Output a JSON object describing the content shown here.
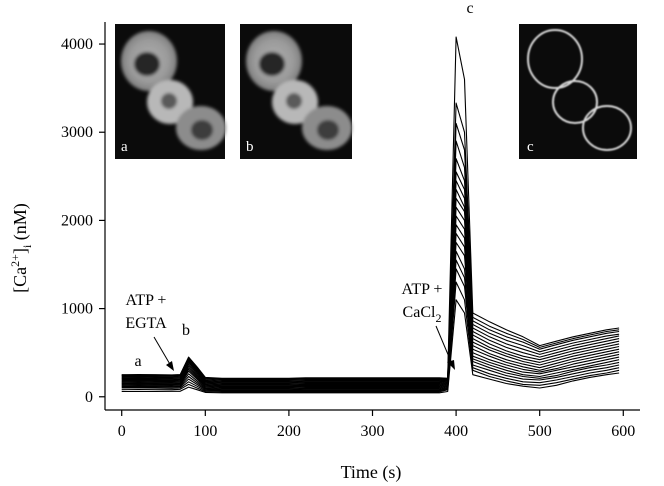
{
  "chart_data": {
    "type": "line",
    "title": "",
    "xlabel": "Time (s)",
    "ylabel": {
      "base": "[Ca",
      "sup": "2+",
      "close": "]",
      "sub": "i",
      "unit": " (nM)"
    },
    "xlim": [
      -20,
      620
    ],
    "ylim": [
      -150,
      4250
    ],
    "xticks": [
      "0",
      "100",
      "200",
      "300",
      "400",
      "500",
      "600"
    ],
    "yticks": [
      "0",
      "1000",
      "2000",
      "3000",
      "4000"
    ],
    "x": [
      0,
      20,
      40,
      60,
      70,
      80,
      90,
      100,
      120,
      140,
      160,
      180,
      200,
      220,
      240,
      260,
      280,
      300,
      320,
      340,
      360,
      380,
      390,
      400,
      410,
      420,
      440,
      460,
      480,
      500,
      520,
      540,
      560,
      580,
      595
    ],
    "series": [
      {
        "values": [
          60,
          60,
          60,
          62,
          62,
          110,
          80,
          50,
          45,
          45,
          45,
          45,
          45,
          45,
          45,
          45,
          45,
          45,
          45,
          45,
          45,
          45,
          60,
          1100,
          950,
          250,
          200,
          150,
          120,
          100,
          130,
          180,
          220,
          250,
          270
        ]
      },
      {
        "values": [
          80,
          82,
          80,
          80,
          85,
          140,
          100,
          60,
          55,
          55,
          55,
          55,
          55,
          55,
          55,
          55,
          55,
          55,
          55,
          55,
          55,
          55,
          80,
          1300,
          1100,
          300,
          230,
          180,
          140,
          130,
          160,
          200,
          240,
          270,
          300
        ]
      },
      {
        "values": [
          100,
          100,
          98,
          96,
          100,
          170,
          120,
          70,
          65,
          65,
          65,
          65,
          65,
          65,
          65,
          65,
          65,
          65,
          65,
          65,
          65,
          65,
          90,
          1450,
          1250,
          330,
          260,
          210,
          170,
          160,
          190,
          230,
          270,
          300,
          330
        ]
      },
      {
        "values": [
          110,
          112,
          110,
          108,
          112,
          200,
          140,
          80,
          72,
          72,
          72,
          72,
          72,
          75,
          75,
          75,
          75,
          75,
          75,
          75,
          75,
          75,
          100,
          1550,
          1350,
          360,
          300,
          240,
          200,
          190,
          220,
          260,
          300,
          330,
          360
        ]
      },
      {
        "values": [
          120,
          122,
          120,
          118,
          122,
          230,
          160,
          90,
          80,
          80,
          80,
          80,
          80,
          85,
          85,
          85,
          85,
          85,
          85,
          85,
          85,
          85,
          110,
          1650,
          1450,
          400,
          330,
          270,
          230,
          210,
          240,
          290,
          330,
          360,
          390
        ]
      },
      {
        "values": [
          130,
          132,
          130,
          128,
          132,
          260,
          180,
          100,
          90,
          90,
          90,
          90,
          90,
          95,
          95,
          95,
          95,
          95,
          95,
          95,
          95,
          95,
          120,
          1750,
          1600,
          430,
          360,
          300,
          250,
          230,
          270,
          310,
          350,
          390,
          420
        ]
      },
      {
        "values": [
          140,
          142,
          140,
          138,
          142,
          290,
          200,
          110,
          100,
          100,
          100,
          100,
          100,
          105,
          105,
          105,
          105,
          105,
          105,
          105,
          105,
          105,
          130,
          1850,
          1700,
          460,
          390,
          330,
          280,
          260,
          300,
          340,
          380,
          420,
          450
        ]
      },
      {
        "values": [
          150,
          152,
          150,
          148,
          152,
          310,
          215,
          120,
          110,
          110,
          110,
          110,
          110,
          115,
          115,
          115,
          115,
          115,
          115,
          115,
          115,
          115,
          140,
          1950,
          1800,
          500,
          420,
          360,
          310,
          280,
          320,
          370,
          410,
          450,
          480
        ]
      },
      {
        "values": [
          160,
          162,
          160,
          158,
          162,
          330,
          230,
          130,
          120,
          120,
          120,
          120,
          120,
          125,
          125,
          125,
          125,
          125,
          125,
          125,
          125,
          125,
          150,
          2050,
          1900,
          540,
          460,
          390,
          340,
          300,
          350,
          400,
          440,
          480,
          510
        ]
      },
      {
        "values": [
          170,
          172,
          170,
          168,
          172,
          350,
          245,
          140,
          130,
          130,
          130,
          130,
          130,
          135,
          135,
          135,
          135,
          135,
          135,
          135,
          135,
          135,
          160,
          2150,
          2000,
          580,
          490,
          420,
          370,
          330,
          380,
          430,
          470,
          510,
          540
        ]
      },
      {
        "values": [
          180,
          182,
          180,
          178,
          182,
          370,
          260,
          150,
          140,
          140,
          140,
          140,
          140,
          145,
          145,
          145,
          145,
          145,
          145,
          145,
          145,
          145,
          170,
          2250,
          2100,
          620,
          530,
          460,
          400,
          360,
          410,
          460,
          500,
          540,
          570
        ]
      },
      {
        "values": [
          190,
          192,
          190,
          188,
          192,
          390,
          275,
          160,
          150,
          150,
          150,
          150,
          150,
          155,
          155,
          155,
          155,
          155,
          155,
          155,
          155,
          155,
          180,
          2350,
          2150,
          660,
          560,
          490,
          430,
          390,
          440,
          490,
          530,
          570,
          600
        ]
      },
      {
        "values": [
          200,
          202,
          200,
          198,
          202,
          400,
          290,
          170,
          160,
          160,
          160,
          160,
          160,
          165,
          165,
          165,
          165,
          165,
          165,
          165,
          165,
          165,
          185,
          2450,
          2250,
          700,
          600,
          520,
          460,
          420,
          470,
          520,
          560,
          600,
          630
        ]
      },
      {
        "values": [
          210,
          212,
          210,
          208,
          212,
          410,
          300,
          180,
          170,
          170,
          170,
          170,
          170,
          175,
          175,
          175,
          175,
          175,
          175,
          175,
          175,
          175,
          190,
          2550,
          2350,
          740,
          640,
          560,
          500,
          450,
          500,
          550,
          590,
          630,
          660
        ]
      },
      {
        "values": [
          220,
          222,
          220,
          218,
          222,
          420,
          310,
          190,
          180,
          180,
          180,
          180,
          180,
          185,
          185,
          185,
          185,
          185,
          185,
          185,
          185,
          185,
          195,
          2700,
          2450,
          780,
          680,
          600,
          540,
          480,
          530,
          580,
          620,
          660,
          690
        ]
      },
      {
        "values": [
          230,
          232,
          230,
          228,
          232,
          430,
          320,
          200,
          190,
          190,
          190,
          190,
          190,
          195,
          195,
          195,
          195,
          195,
          195,
          195,
          195,
          195,
          200,
          2900,
          2600,
          820,
          720,
          640,
          580,
          510,
          560,
          610,
          650,
          690,
          710
        ]
      },
      {
        "values": [
          240,
          242,
          240,
          238,
          242,
          440,
          330,
          210,
          200,
          200,
          200,
          200,
          200,
          205,
          205,
          205,
          205,
          205,
          205,
          205,
          205,
          205,
          205,
          3100,
          2800,
          860,
          760,
          680,
          620,
          540,
          590,
          640,
          680,
          720,
          740
        ]
      },
      {
        "values": [
          245,
          247,
          245,
          243,
          247,
          445,
          335,
          215,
          205,
          205,
          205,
          205,
          205,
          210,
          210,
          210,
          210,
          210,
          210,
          210,
          210,
          210,
          208,
          3330,
          3000,
          900,
          800,
          720,
          650,
          560,
          610,
          660,
          700,
          740,
          760
        ]
      },
      {
        "values": [
          250,
          252,
          250,
          248,
          252,
          450,
          340,
          220,
          210,
          210,
          210,
          210,
          210,
          215,
          215,
          215,
          215,
          215,
          215,
          215,
          215,
          215,
          210,
          4080,
          3600,
          950,
          850,
          760,
          680,
          580,
          630,
          680,
          720,
          760,
          780
        ]
      }
    ],
    "annotations": {
      "a_label": "a",
      "b_label": "b",
      "c_label": "c",
      "atp_egta": [
        "ATP +",
        "EGTA"
      ],
      "atp_cacl2": {
        "line1": "ATP +",
        "line2": "CaCl",
        "sub": "2"
      }
    },
    "insets": [
      {
        "label": "a"
      },
      {
        "label": "b"
      },
      {
        "label": "c"
      }
    ],
    "grid": false,
    "legend": "none"
  }
}
